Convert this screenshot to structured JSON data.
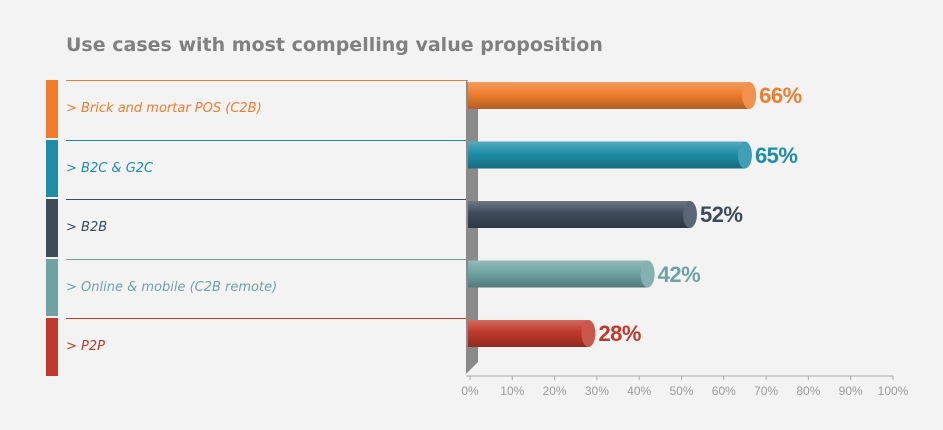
{
  "title": "Use cases with most compelling value proposition",
  "chart_data": {
    "type": "bar",
    "orientation": "horizontal",
    "title": "Use cases with most compelling value proposition",
    "categories": [
      "> Brick and mortar POS (C2B)",
      "> B2C & G2C",
      "> B2B",
      "> Online & mobile (C2B remote)",
      "> P2P"
    ],
    "values": [
      66,
      65,
      52,
      42,
      28
    ],
    "value_labels": [
      "66%",
      "65%",
      "52%",
      "42%",
      "28%"
    ],
    "colors": [
      "#ef7d2d",
      "#1e8ea8",
      "#3d4b5a",
      "#6fa3a3",
      "#c0392b"
    ],
    "xlim": [
      0,
      100
    ],
    "xticks": [
      "0%",
      "10%",
      "20%",
      "30%",
      "40%",
      "50%",
      "60%",
      "70%",
      "80%",
      "90%",
      "100%"
    ],
    "xlabel": "",
    "ylabel": "",
    "grid": false
  }
}
